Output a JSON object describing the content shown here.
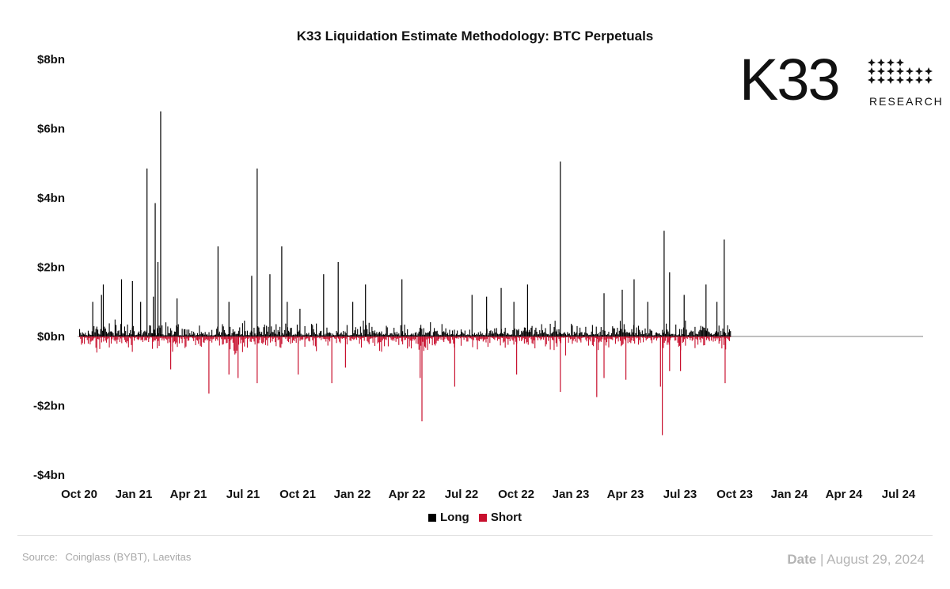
{
  "chart_data": {
    "type": "bar",
    "title": "K33 Liquidation Estimate Methodology: BTC Perpetuals",
    "xlabel": "",
    "ylabel": "",
    "ylim": [
      -4,
      8
    ],
    "y_unit": "bn USD",
    "y_ticks": [
      8,
      6,
      4,
      2,
      0,
      -2,
      -4
    ],
    "y_tick_labels": [
      "$8bn",
      "$6bn",
      "$4bn",
      "$2bn",
      "$0bn",
      "-$2bn",
      "-$4bn"
    ],
    "x_tick_labels": [
      "Oct 20",
      "Jan 21",
      "Apr 21",
      "Jul 21",
      "Oct 21",
      "Jan 22",
      "Apr 22",
      "Jul 22",
      "Oct 22",
      "Jan 23",
      "Apr 23",
      "Jul 23",
      "Oct 23",
      "Jan 24",
      "Apr 24",
      "Jul 24"
    ],
    "x_range": [
      "Oct 20",
      "Aug 24"
    ],
    "series": [
      {
        "name": "Long",
        "color": "#000000",
        "peaks": [
          {
            "x": 3.7,
            "value": 4.85
          },
          {
            "x": 4.15,
            "value": 3.85
          },
          {
            "x": 4.3,
            "value": 2.15
          },
          {
            "x": 4.45,
            "value": 6.5
          },
          {
            "x": 2.3,
            "value": 1.65
          },
          {
            "x": 2.9,
            "value": 1.6
          },
          {
            "x": 3.35,
            "value": 1.0
          },
          {
            "x": 4.05,
            "value": 1.15
          },
          {
            "x": 0.72,
            "value": 1.0
          },
          {
            "x": 1.2,
            "value": 1.2
          },
          {
            "x": 1.3,
            "value": 1.5
          },
          {
            "x": 5.35,
            "value": 1.1
          },
          {
            "x": 7.6,
            "value": 2.6
          },
          {
            "x": 8.2,
            "value": 1.0
          },
          {
            "x": 9.45,
            "value": 1.75
          },
          {
            "x": 9.75,
            "value": 4.85
          },
          {
            "x": 10.45,
            "value": 1.8
          },
          {
            "x": 11.1,
            "value": 2.6
          },
          {
            "x": 11.4,
            "value": 1.0
          },
          {
            "x": 12.1,
            "value": 0.8
          },
          {
            "x": 13.4,
            "value": 1.8
          },
          {
            "x": 14.2,
            "value": 2.15
          },
          {
            "x": 15.0,
            "value": 1.0
          },
          {
            "x": 15.7,
            "value": 1.5
          },
          {
            "x": 17.7,
            "value": 1.65
          },
          {
            "x": 21.55,
            "value": 1.2
          },
          {
            "x": 22.35,
            "value": 1.15
          },
          {
            "x": 23.15,
            "value": 1.4
          },
          {
            "x": 23.85,
            "value": 1.0
          },
          {
            "x": 24.6,
            "value": 1.5
          },
          {
            "x": 26.4,
            "value": 5.05
          },
          {
            "x": 28.8,
            "value": 1.25
          },
          {
            "x": 29.8,
            "value": 1.35
          },
          {
            "x": 30.45,
            "value": 1.65
          },
          {
            "x": 31.2,
            "value": 1.0
          },
          {
            "x": 32.1,
            "value": 3.05
          },
          {
            "x": 32.4,
            "value": 1.85
          },
          {
            "x": 33.2,
            "value": 1.2
          },
          {
            "x": 34.4,
            "value": 1.5
          },
          {
            "x": 35.0,
            "value": 1.0
          },
          {
            "x": 35.4,
            "value": 2.8
          }
        ]
      },
      {
        "name": "Short",
        "color": "#c8102e",
        "peaks": [
          {
            "x": 5.0,
            "value": -0.95
          },
          {
            "x": 7.1,
            "value": -1.65
          },
          {
            "x": 8.2,
            "value": -1.1
          },
          {
            "x": 8.7,
            "value": -1.2
          },
          {
            "x": 9.75,
            "value": -1.35
          },
          {
            "x": 12.0,
            "value": -1.1
          },
          {
            "x": 13.85,
            "value": -1.35
          },
          {
            "x": 14.6,
            "value": -0.9
          },
          {
            "x": 18.8,
            "value": -2.45
          },
          {
            "x": 18.7,
            "value": -1.2
          },
          {
            "x": 20.6,
            "value": -1.45
          },
          {
            "x": 24.0,
            "value": -1.1
          },
          {
            "x": 26.4,
            "value": -1.6
          },
          {
            "x": 28.4,
            "value": -1.75
          },
          {
            "x": 28.8,
            "value": -1.2
          },
          {
            "x": 30.0,
            "value": -1.25
          },
          {
            "x": 31.9,
            "value": -1.45
          },
          {
            "x": 32.0,
            "value": -2.85
          },
          {
            "x": 32.4,
            "value": -1.0
          },
          {
            "x": 33.0,
            "value": -1.0
          },
          {
            "x": 35.45,
            "value": -1.35
          }
        ]
      }
    ],
    "legend": [
      "Long",
      "Short"
    ],
    "legend_position": "bottom-center"
  },
  "footer": {
    "source_label": "Source:",
    "source_text": "Coinglass (BYBT), Laevitas",
    "date_label": "Date",
    "date_separator": "|",
    "date_value": "August 29, 2024"
  },
  "logo": {
    "wordmark": "K33",
    "subtitle": "RESEARCH",
    "icon": "k33-star-grid-icon"
  }
}
